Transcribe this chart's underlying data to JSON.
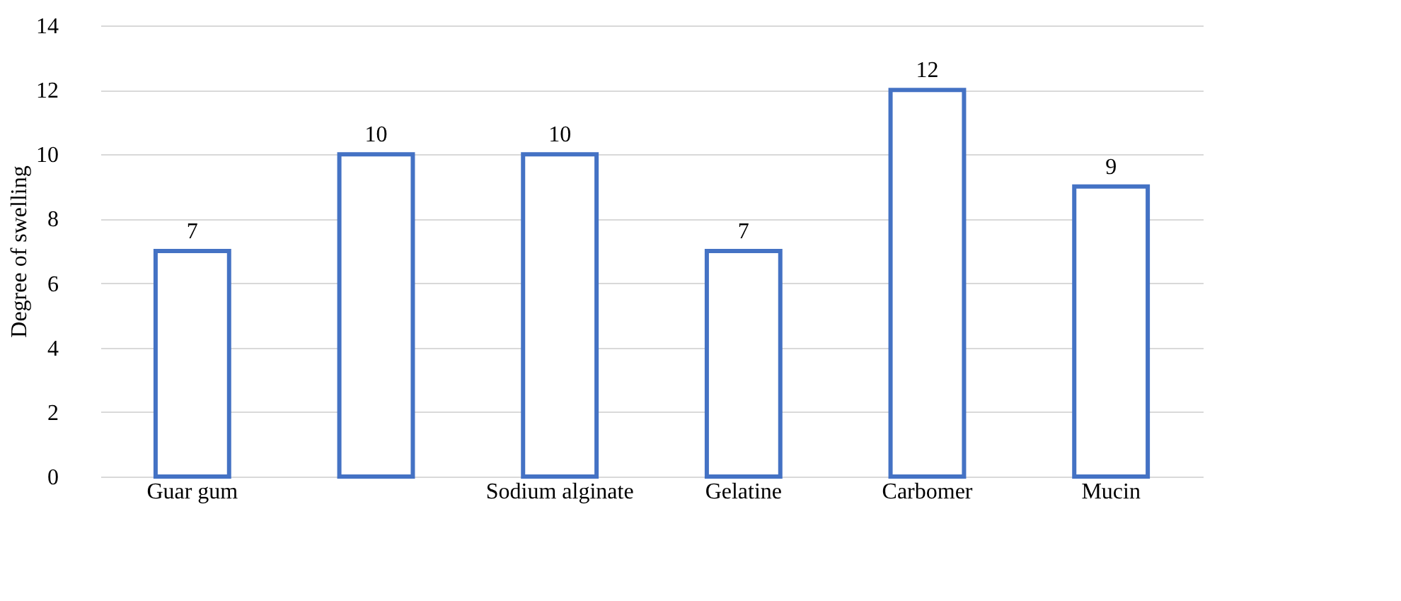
{
  "chart_data": {
    "type": "bar",
    "ylabel": "Degree of swelling",
    "categories": [
      "Guar gum",
      null,
      "Sodium alginate",
      "Gelatine",
      "Carbomer",
      "Mucin"
    ],
    "values": [
      7,
      10,
      10,
      7,
      12,
      9
    ],
    "color": "#4472c4",
    "ylim": [
      0,
      14
    ],
    "yticks": [
      0,
      2,
      4,
      6,
      8,
      10,
      12,
      14
    ],
    "grid": "y",
    "data_labels": true
  }
}
